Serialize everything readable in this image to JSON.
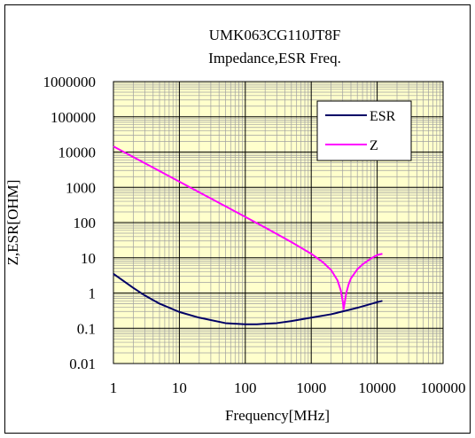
{
  "chart_data": {
    "type": "line",
    "title": "UMK063CG110JT8F",
    "subtitle": "Impedance,ESR Freq.",
    "xlabel": "Frequency[MHz]",
    "ylabel": "Z,ESR[OHM]",
    "x_scale": "log",
    "y_scale": "log",
    "xlim": [
      1,
      100000
    ],
    "ylim": [
      0.01,
      1000000
    ],
    "x_ticks": [
      "1",
      "10",
      "100",
      "1000",
      "10000",
      "100000"
    ],
    "y_ticks": [
      "0.01",
      "0.1",
      "1",
      "10",
      "100",
      "1000",
      "10000",
      "100000",
      "1000000"
    ],
    "grid": true,
    "legend_position": "top-right",
    "background_color": "#ffffcc",
    "series": [
      {
        "name": "ESR",
        "color": "#000066",
        "x": [
          1,
          2,
          3,
          5,
          10,
          20,
          50,
          100,
          150,
          200,
          300,
          500,
          1000,
          2000,
          3000,
          5000,
          10000,
          12000
        ],
        "y": [
          3.5,
          1.4,
          0.85,
          0.5,
          0.29,
          0.2,
          0.14,
          0.13,
          0.13,
          0.135,
          0.14,
          0.16,
          0.2,
          0.25,
          0.3,
          0.38,
          0.55,
          0.6
        ]
      },
      {
        "name": "Z",
        "color": "#ff00ff",
        "x": [
          1,
          2,
          5,
          10,
          20,
          50,
          100,
          200,
          500,
          1000,
          1500,
          2000,
          2500,
          2800,
          3000,
          3100,
          3200,
          3400,
          3700,
          4000,
          5000,
          6000,
          8000,
          10000,
          12000
        ],
        "y": [
          14500,
          7200,
          2900,
          1450,
          720,
          290,
          145,
          72,
          28,
          13,
          7.5,
          4.5,
          2.3,
          1.2,
          0.6,
          0.35,
          0.5,
          1.0,
          1.8,
          2.6,
          4.7,
          6.5,
          9.5,
          12,
          13
        ]
      }
    ]
  }
}
